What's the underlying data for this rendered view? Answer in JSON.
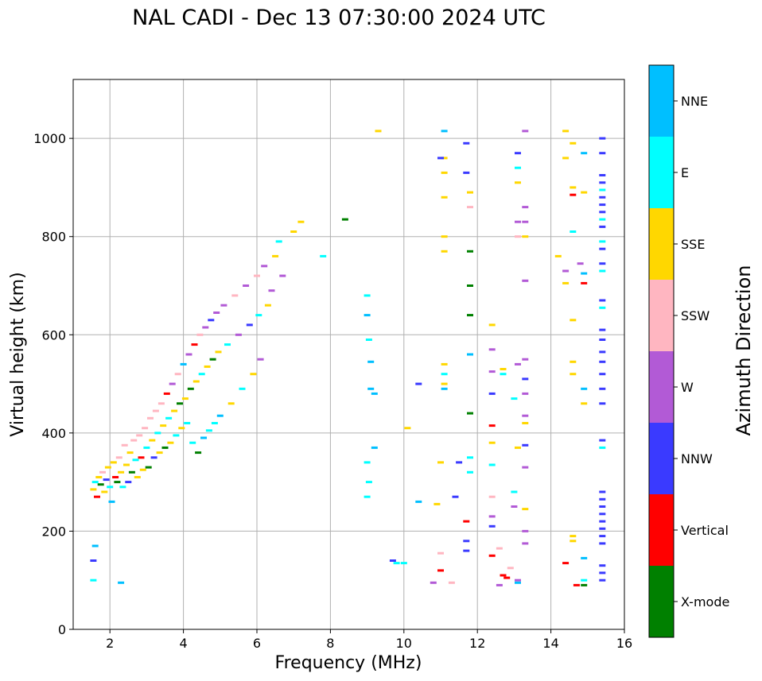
{
  "chart_data": {
    "type": "scatter",
    "title": "NAL CADI - Dec 13 07:30:00 2024 UTC",
    "xlabel": "Frequency (MHz)",
    "ylabel": "Virtual height (km)",
    "xlim": [
      1,
      16
    ],
    "ylim": [
      0,
      1120
    ],
    "xticks": [
      2,
      4,
      6,
      8,
      10,
      12,
      14,
      16
    ],
    "yticks": [
      0,
      200,
      400,
      600,
      800,
      1000
    ],
    "grid": true,
    "colorbar": {
      "label": "Azimuth Direction",
      "categories": [
        {
          "name": "X-mode",
          "color": "#008000"
        },
        {
          "name": "Vertical",
          "color": "#ff0000"
        },
        {
          "name": "NNW",
          "color": "#3a3aff"
        },
        {
          "name": "W",
          "color": "#b25ad6"
        },
        {
          "name": "SSW",
          "color": "#ffb6c1"
        },
        {
          "name": "SSE",
          "color": "#ffd700"
        },
        {
          "name": "E",
          "color": "#00ffff"
        },
        {
          "name": "NNE",
          "color": "#00bfff"
        }
      ]
    },
    "points": [
      [
        1.55,
        285,
        "SSE"
      ],
      [
        1.6,
        300,
        "E"
      ],
      [
        1.65,
        270,
        "Vertical"
      ],
      [
        1.7,
        310,
        "SSE"
      ],
      [
        1.75,
        295,
        "X-mode"
      ],
      [
        1.8,
        320,
        "SSW"
      ],
      [
        1.85,
        280,
        "SSE"
      ],
      [
        1.9,
        305,
        "NNW"
      ],
      [
        1.95,
        330,
        "SSE"
      ],
      [
        2.0,
        290,
        "E"
      ],
      [
        2.05,
        260,
        "NNE"
      ],
      [
        2.1,
        340,
        "SSE"
      ],
      [
        2.15,
        310,
        "Vertical"
      ],
      [
        2.2,
        300,
        "X-mode"
      ],
      [
        2.25,
        350,
        "SSW"
      ],
      [
        2.3,
        320,
        "SSE"
      ],
      [
        2.35,
        290,
        "E"
      ],
      [
        2.4,
        375,
        "SSW"
      ],
      [
        2.45,
        335,
        "SSE"
      ],
      [
        2.5,
        300,
        "NNW"
      ],
      [
        2.55,
        360,
        "SSE"
      ],
      [
        2.6,
        320,
        "X-mode"
      ],
      [
        2.65,
        385,
        "SSW"
      ],
      [
        2.7,
        345,
        "E"
      ],
      [
        2.75,
        310,
        "SSE"
      ],
      [
        2.8,
        395,
        "SSW"
      ],
      [
        2.85,
        350,
        "Vertical"
      ],
      [
        2.9,
        325,
        "SSE"
      ],
      [
        2.95,
        410,
        "SSW"
      ],
      [
        3.0,
        370,
        "E"
      ],
      [
        3.05,
        330,
        "X-mode"
      ],
      [
        3.1,
        430,
        "SSW"
      ],
      [
        3.15,
        385,
        "SSE"
      ],
      [
        3.2,
        350,
        "NNW"
      ],
      [
        3.25,
        445,
        "SSW"
      ],
      [
        3.3,
        400,
        "E"
      ],
      [
        3.35,
        360,
        "SSE"
      ],
      [
        3.4,
        460,
        "SSW"
      ],
      [
        3.45,
        415,
        "SSE"
      ],
      [
        3.5,
        370,
        "X-mode"
      ],
      [
        3.55,
        480,
        "Vertical"
      ],
      [
        3.6,
        430,
        "E"
      ],
      [
        3.65,
        380,
        "SSE"
      ],
      [
        3.7,
        500,
        "W"
      ],
      [
        3.75,
        445,
        "SSE"
      ],
      [
        3.8,
        395,
        "E"
      ],
      [
        3.85,
        520,
        "SSW"
      ],
      [
        3.9,
        460,
        "X-mode"
      ],
      [
        3.95,
        410,
        "SSE"
      ],
      [
        4.0,
        540,
        "NNE"
      ],
      [
        4.05,
        470,
        "SSE"
      ],
      [
        4.1,
        420,
        "E"
      ],
      [
        4.15,
        560,
        "W"
      ],
      [
        4.2,
        490,
        "X-mode"
      ],
      [
        4.25,
        380,
        "E"
      ],
      [
        4.3,
        580,
        "Vertical"
      ],
      [
        4.35,
        505,
        "SSE"
      ],
      [
        4.4,
        360,
        "X-mode"
      ],
      [
        4.45,
        600,
        "SSW"
      ],
      [
        4.5,
        520,
        "E"
      ],
      [
        4.55,
        390,
        "NNE"
      ],
      [
        4.6,
        615,
        "W"
      ],
      [
        4.65,
        535,
        "SSE"
      ],
      [
        4.7,
        405,
        "E"
      ],
      [
        4.75,
        630,
        "NNW"
      ],
      [
        4.8,
        550,
        "X-mode"
      ],
      [
        4.85,
        420,
        "E"
      ],
      [
        4.9,
        645,
        "W"
      ],
      [
        4.95,
        565,
        "SSE"
      ],
      [
        5.0,
        435,
        "NNE"
      ],
      [
        5.1,
        660,
        "W"
      ],
      [
        5.2,
        580,
        "E"
      ],
      [
        5.3,
        460,
        "SSE"
      ],
      [
        5.4,
        680,
        "SSW"
      ],
      [
        5.5,
        600,
        "W"
      ],
      [
        5.6,
        490,
        "E"
      ],
      [
        5.7,
        700,
        "W"
      ],
      [
        5.8,
        620,
        "NNW"
      ],
      [
        5.9,
        520,
        "SSE"
      ],
      [
        6.0,
        720,
        "SSW"
      ],
      [
        6.05,
        640,
        "E"
      ],
      [
        6.1,
        550,
        "W"
      ],
      [
        6.2,
        740,
        "W"
      ],
      [
        6.3,
        660,
        "SSE"
      ],
      [
        6.4,
        690,
        "W"
      ],
      [
        6.5,
        760,
        "SSE"
      ],
      [
        6.6,
        790,
        "E"
      ],
      [
        6.7,
        720,
        "W"
      ],
      [
        7.0,
        810,
        "SSE"
      ],
      [
        7.2,
        830,
        "SSE"
      ],
      [
        7.8,
        760,
        "E"
      ],
      [
        8.4,
        835,
        "X-mode"
      ],
      [
        1.55,
        100,
        "E"
      ],
      [
        1.55,
        140,
        "NNW"
      ],
      [
        1.6,
        170,
        "NNE"
      ],
      [
        2.3,
        95,
        "NNE"
      ],
      [
        9.0,
        680,
        "E"
      ],
      [
        9.0,
        640,
        "NNE"
      ],
      [
        9.05,
        590,
        "E"
      ],
      [
        9.1,
        545,
        "NNE"
      ],
      [
        9.1,
        490,
        "NNE"
      ],
      [
        9.2,
        480,
        "NNE"
      ],
      [
        9.2,
        370,
        "NNE"
      ],
      [
        9.0,
        340,
        "E"
      ],
      [
        9.05,
        300,
        "E"
      ],
      [
        9.0,
        270,
        "E"
      ],
      [
        9.3,
        1015,
        "SSE"
      ],
      [
        9.7,
        140,
        "NNW"
      ],
      [
        9.8,
        135,
        "E"
      ],
      [
        10.0,
        135,
        "E"
      ],
      [
        10.1,
        410,
        "SSE"
      ],
      [
        10.4,
        260,
        "NNE"
      ],
      [
        10.4,
        500,
        "NNW"
      ],
      [
        11.1,
        1015,
        "NNE"
      ],
      [
        11.1,
        960,
        "SSE"
      ],
      [
        11.1,
        930,
        "SSE"
      ],
      [
        11.1,
        880,
        "SSE"
      ],
      [
        11.1,
        800,
        "SSE"
      ],
      [
        11.1,
        770,
        "SSE"
      ],
      [
        11.1,
        540,
        "SSE"
      ],
      [
        11.1,
        520,
        "E"
      ],
      [
        11.1,
        500,
        "SSE"
      ],
      [
        11.1,
        490,
        "NNE"
      ],
      [
        11.0,
        960,
        "NNW"
      ],
      [
        11.0,
        340,
        "SSE"
      ],
      [
        10.9,
        255,
        "SSE"
      ],
      [
        11.0,
        155,
        "SSW"
      ],
      [
        11.0,
        120,
        "Vertical"
      ],
      [
        10.8,
        95,
        "W"
      ],
      [
        11.3,
        95,
        "SSW"
      ],
      [
        11.4,
        270,
        "NNW"
      ],
      [
        11.5,
        340,
        "NNW"
      ],
      [
        11.7,
        990,
        "NNW"
      ],
      [
        11.7,
        930,
        "NNW"
      ],
      [
        11.8,
        890,
        "SSE"
      ],
      [
        11.8,
        860,
        "SSW"
      ],
      [
        11.8,
        770,
        "X-mode"
      ],
      [
        11.8,
        700,
        "X-mode"
      ],
      [
        11.8,
        640,
        "X-mode"
      ],
      [
        11.8,
        560,
        "NNE"
      ],
      [
        11.8,
        440,
        "X-mode"
      ],
      [
        11.8,
        350,
        "E"
      ],
      [
        11.8,
        320,
        "E"
      ],
      [
        11.7,
        220,
        "Vertical"
      ],
      [
        11.7,
        180,
        "NNW"
      ],
      [
        11.7,
        160,
        "NNW"
      ],
      [
        12.4,
        620,
        "SSE"
      ],
      [
        12.4,
        570,
        "W"
      ],
      [
        12.4,
        525,
        "W"
      ],
      [
        12.4,
        480,
        "NNW"
      ],
      [
        12.4,
        415,
        "Vertical"
      ],
      [
        12.4,
        380,
        "SSE"
      ],
      [
        12.4,
        335,
        "E"
      ],
      [
        12.4,
        270,
        "SSW"
      ],
      [
        12.4,
        230,
        "W"
      ],
      [
        12.4,
        210,
        "NNW"
      ],
      [
        12.4,
        150,
        "Vertical"
      ],
      [
        12.6,
        165,
        "SSW"
      ],
      [
        12.7,
        110,
        "Vertical"
      ],
      [
        12.8,
        105,
        "Vertical"
      ],
      [
        12.6,
        90,
        "W"
      ],
      [
        12.7,
        530,
        "SSE"
      ],
      [
        12.7,
        520,
        "E"
      ],
      [
        12.9,
        125,
        "SSW"
      ],
      [
        13.0,
        470,
        "E"
      ],
      [
        13.0,
        280,
        "E"
      ],
      [
        13.0,
        250,
        "W"
      ],
      [
        13.1,
        95,
        "NNE"
      ],
      [
        13.1,
        100,
        "W"
      ],
      [
        13.1,
        970,
        "NNW"
      ],
      [
        13.1,
        940,
        "E"
      ],
      [
        13.1,
        910,
        "SSE"
      ],
      [
        13.1,
        830,
        "W"
      ],
      [
        13.1,
        800,
        "SSW"
      ],
      [
        13.1,
        540,
        "W"
      ],
      [
        13.1,
        370,
        "SSE"
      ],
      [
        13.3,
        1015,
        "W"
      ],
      [
        13.3,
        860,
        "W"
      ],
      [
        13.3,
        830,
        "W"
      ],
      [
        13.3,
        800,
        "SSE"
      ],
      [
        13.3,
        710,
        "W"
      ],
      [
        13.3,
        550,
        "W"
      ],
      [
        13.3,
        510,
        "NNW"
      ],
      [
        13.3,
        480,
        "W"
      ],
      [
        13.3,
        435,
        "W"
      ],
      [
        13.3,
        420,
        "SSE"
      ],
      [
        13.3,
        375,
        "NNW"
      ],
      [
        13.3,
        330,
        "W"
      ],
      [
        13.3,
        245,
        "SSE"
      ],
      [
        13.3,
        200,
        "W"
      ],
      [
        13.3,
        175,
        "W"
      ],
      [
        14.4,
        1015,
        "SSE"
      ],
      [
        14.6,
        990,
        "SSE"
      ],
      [
        14.4,
        960,
        "SSE"
      ],
      [
        14.6,
        900,
        "SSE"
      ],
      [
        14.6,
        885,
        "Vertical"
      ],
      [
        14.6,
        810,
        "E"
      ],
      [
        14.2,
        760,
        "SSE"
      ],
      [
        14.4,
        730,
        "W"
      ],
      [
        14.4,
        705,
        "SSE"
      ],
      [
        14.6,
        630,
        "SSE"
      ],
      [
        14.6,
        545,
        "SSE"
      ],
      [
        14.6,
        520,
        "SSE"
      ],
      [
        14.4,
        135,
        "Vertical"
      ],
      [
        14.6,
        190,
        "SSE"
      ],
      [
        14.6,
        180,
        "SSE"
      ],
      [
        14.7,
        90,
        "Vertical"
      ],
      [
        14.9,
        890,
        "SSE"
      ],
      [
        14.9,
        970,
        "NNE"
      ],
      [
        14.9,
        725,
        "NNE"
      ],
      [
        14.9,
        705,
        "Vertical"
      ],
      [
        14.9,
        490,
        "NNE"
      ],
      [
        14.9,
        460,
        "SSE"
      ],
      [
        14.9,
        145,
        "NNE"
      ],
      [
        14.9,
        90,
        "X-mode"
      ],
      [
        14.8,
        745,
        "W"
      ],
      [
        14.9,
        100,
        "E"
      ],
      [
        15.4,
        1000,
        "NNW"
      ],
      [
        15.4,
        970,
        "NNW"
      ],
      [
        15.4,
        925,
        "NNW"
      ],
      [
        15.4,
        910,
        "NNW"
      ],
      [
        15.4,
        895,
        "E"
      ],
      [
        15.4,
        880,
        "NNW"
      ],
      [
        15.4,
        865,
        "NNW"
      ],
      [
        15.4,
        850,
        "NNW"
      ],
      [
        15.4,
        835,
        "E"
      ],
      [
        15.4,
        820,
        "NNW"
      ],
      [
        15.4,
        790,
        "E"
      ],
      [
        15.4,
        775,
        "NNW"
      ],
      [
        15.4,
        745,
        "NNW"
      ],
      [
        15.4,
        730,
        "E"
      ],
      [
        15.4,
        670,
        "NNW"
      ],
      [
        15.4,
        655,
        "E"
      ],
      [
        15.4,
        610,
        "NNW"
      ],
      [
        15.4,
        590,
        "NNW"
      ],
      [
        15.4,
        565,
        "NNW"
      ],
      [
        15.4,
        545,
        "NNW"
      ],
      [
        15.4,
        520,
        "NNW"
      ],
      [
        15.4,
        490,
        "NNW"
      ],
      [
        15.4,
        460,
        "NNW"
      ],
      [
        15.4,
        385,
        "NNW"
      ],
      [
        15.4,
        370,
        "E"
      ],
      [
        15.4,
        280,
        "NNW"
      ],
      [
        15.4,
        265,
        "NNW"
      ],
      [
        15.4,
        250,
        "NNW"
      ],
      [
        15.4,
        235,
        "NNW"
      ],
      [
        15.4,
        220,
        "NNW"
      ],
      [
        15.4,
        205,
        "NNW"
      ],
      [
        15.4,
        190,
        "NNW"
      ],
      [
        15.4,
        175,
        "NNW"
      ],
      [
        15.4,
        130,
        "NNW"
      ],
      [
        15.4,
        115,
        "NNW"
      ],
      [
        15.4,
        100,
        "NNW"
      ]
    ]
  }
}
